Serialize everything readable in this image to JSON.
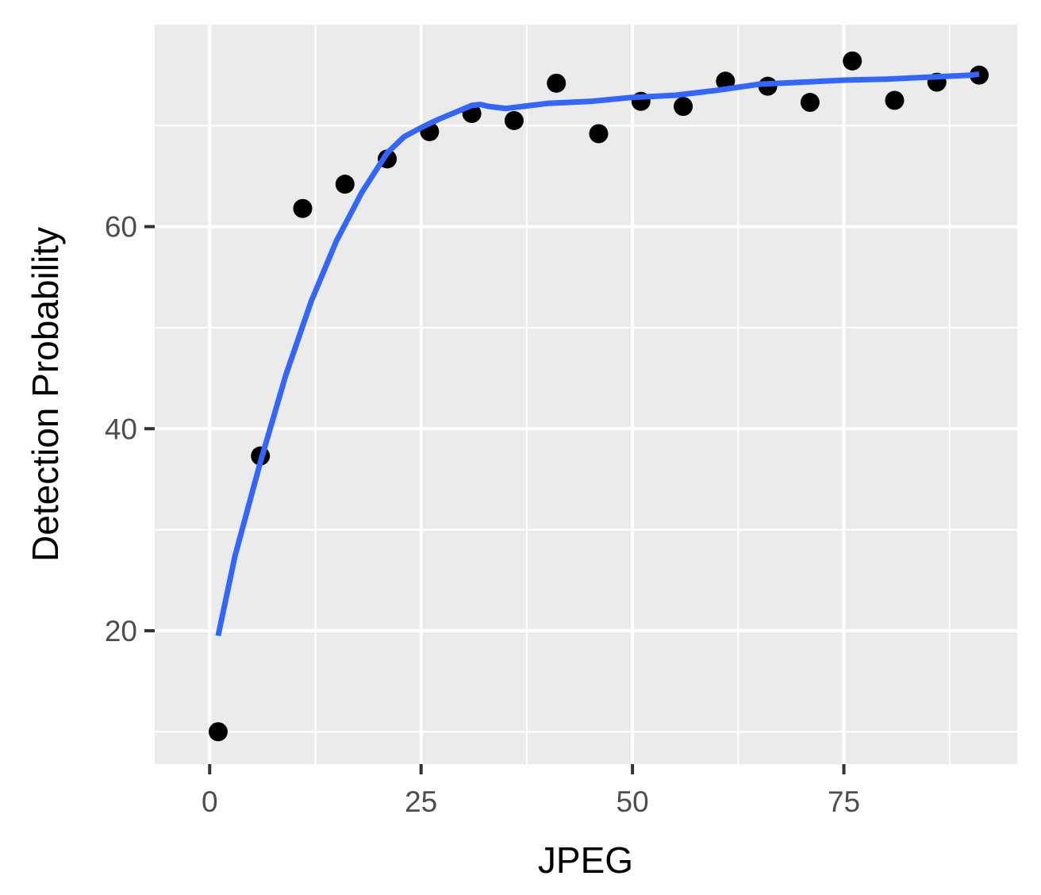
{
  "chart_data": {
    "type": "scatter",
    "title": "",
    "xlabel": "JPEG",
    "ylabel": "Detection Probability",
    "xlim": [
      -6.5,
      95.5
    ],
    "ylim": [
      6.8,
      80.0
    ],
    "x_ticks": [
      0,
      25,
      50,
      75
    ],
    "y_ticks": [
      20,
      40,
      60
    ],
    "grid": true,
    "background": "#ebebeb",
    "points": [
      {
        "x": 1,
        "y": 10.0
      },
      {
        "x": 6,
        "y": 37.3
      },
      {
        "x": 11,
        "y": 61.8
      },
      {
        "x": 16,
        "y": 64.2
      },
      {
        "x": 21,
        "y": 66.7
      },
      {
        "x": 26,
        "y": 69.4
      },
      {
        "x": 31,
        "y": 71.2
      },
      {
        "x": 36,
        "y": 70.5
      },
      {
        "x": 41,
        "y": 74.2
      },
      {
        "x": 46,
        "y": 69.2
      },
      {
        "x": 51,
        "y": 72.4
      },
      {
        "x": 56,
        "y": 71.9
      },
      {
        "x": 61,
        "y": 74.4
      },
      {
        "x": 66,
        "y": 73.9
      },
      {
        "x": 71,
        "y": 72.3
      },
      {
        "x": 76,
        "y": 76.4
      },
      {
        "x": 81,
        "y": 72.5
      },
      {
        "x": 86,
        "y": 74.3
      },
      {
        "x": 91,
        "y": 75.0
      }
    ],
    "smooth_line": {
      "color": "#3366ff",
      "x": [
        1,
        3,
        6,
        9,
        12,
        15,
        18,
        21,
        23,
        25,
        27,
        29,
        31,
        32,
        33,
        35,
        37,
        40,
        45,
        50,
        55,
        60,
        65,
        70,
        75,
        80,
        85,
        90,
        91
      ],
      "y": [
        19.5,
        27.4,
        36.7,
        45.3,
        52.6,
        58.6,
        63.4,
        67.3,
        68.9,
        69.8,
        70.6,
        71.3,
        72.0,
        72.1,
        71.9,
        71.7,
        71.9,
        72.2,
        72.4,
        72.8,
        73.0,
        73.5,
        74.1,
        74.3,
        74.5,
        74.6,
        74.8,
        75.0,
        75.1
      ]
    },
    "point_color": "#000000"
  }
}
